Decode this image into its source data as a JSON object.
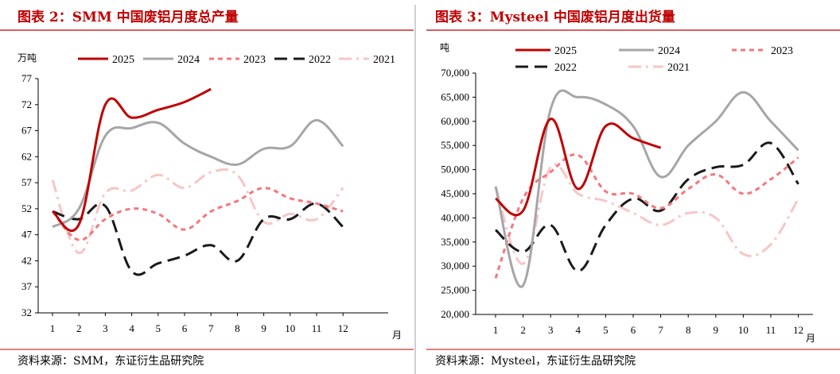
{
  "footer": {
    "left_source": "资料来源：SMM，东证衍生品研究院",
    "right_source": "资料来源：Mysteel，东证衍生品研究院"
  },
  "chart_data": [
    {
      "type": "line",
      "title": "图表 2：SMM 中国废铝月度总产量",
      "ylabel": "万吨",
      "xlabel": "月",
      "categories": [
        "1",
        "2",
        "3",
        "4",
        "5",
        "6",
        "7",
        "8",
        "9",
        "10",
        "11",
        "12"
      ],
      "ylim": [
        32,
        77
      ],
      "yticks": [
        32,
        37,
        42,
        47,
        52,
        57,
        62,
        67,
        72,
        77
      ],
      "ytick_labels": [
        "32",
        "37",
        "42",
        "47",
        "52",
        "57",
        "62",
        "67",
        "72",
        "77"
      ],
      "legend": [
        "2025",
        "2024",
        "2023",
        "2022",
        "2021"
      ],
      "series": [
        {
          "name": "2025",
          "color": "#c00000",
          "dash": "solid",
          "values": [
            51.5,
            49.0,
            72.0,
            69.5,
            71.0,
            72.5,
            75.0,
            null,
            null,
            null,
            null,
            null
          ]
        },
        {
          "name": "2024",
          "color": "#a6a6a6",
          "dash": "solid",
          "values": [
            48.5,
            52.0,
            66.0,
            67.5,
            68.5,
            64.5,
            62.0,
            60.5,
            63.5,
            64.0,
            69.0,
            64.0
          ]
        },
        {
          "name": "2023",
          "color": "#f4777d",
          "dash": "short",
          "values": [
            51.5,
            46.0,
            50.0,
            52.0,
            51.0,
            48.0,
            51.5,
            53.5,
            56.0,
            54.0,
            53.0,
            51.5
          ]
        },
        {
          "name": "2022",
          "color": "#1a1a1a",
          "dash": "long",
          "values": [
            51.5,
            50.0,
            52.5,
            40.0,
            41.5,
            43.0,
            45.0,
            42.0,
            50.0,
            50.0,
            53.0,
            48.5
          ]
        },
        {
          "name": "2021",
          "color": "#f7c6c7",
          "dash": "dashdot",
          "values": [
            57.5,
            43.5,
            55.0,
            55.5,
            58.5,
            56.0,
            59.0,
            58.5,
            49.5,
            51.0,
            50.0,
            56.0
          ]
        }
      ]
    },
    {
      "type": "line",
      "title": "图表 3：Mysteel 中国废铝月度出货量",
      "ylabel": "吨",
      "xlabel": "月",
      "categories": [
        "1",
        "2",
        "3",
        "4",
        "5",
        "6",
        "7",
        "8",
        "9",
        "10",
        "11",
        "12"
      ],
      "ylim": [
        20000,
        70000
      ],
      "yticks": [
        20000,
        25000,
        30000,
        35000,
        40000,
        45000,
        50000,
        55000,
        60000,
        65000,
        70000
      ],
      "ytick_labels": [
        "20,000",
        "25,000",
        "30,000",
        "35,000",
        "40,000",
        "45,000",
        "50,000",
        "55,000",
        "60,000",
        "65,000",
        "70,000"
      ],
      "legend": [
        "2025",
        "2024",
        "2023",
        "2022",
        "2021"
      ],
      "series": [
        {
          "name": "2025",
          "color": "#c00000",
          "dash": "solid",
          "values": [
            44000,
            41500,
            60500,
            46000,
            59000,
            56500,
            54500,
            null,
            null,
            null,
            null,
            null
          ]
        },
        {
          "name": "2024",
          "color": "#a6a6a6",
          "dash": "solid",
          "values": [
            46500,
            26000,
            62500,
            65000,
            63500,
            59000,
            48500,
            55000,
            60000,
            66000,
            60000,
            54000
          ]
        },
        {
          "name": "2023",
          "color": "#f4777d",
          "dash": "short",
          "values": [
            27500,
            44000,
            49500,
            53000,
            45500,
            45000,
            42000,
            46000,
            49000,
            45000,
            48000,
            52500
          ]
        },
        {
          "name": "2022",
          "color": "#1a1a1a",
          "dash": "long",
          "values": [
            37500,
            33000,
            38500,
            29000,
            38500,
            44000,
            41500,
            48000,
            50500,
            51000,
            55500,
            47000
          ]
        },
        {
          "name": "2021",
          "color": "#f7c6c7",
          "dash": "dashdot",
          "values": [
            46500,
            30500,
            50500,
            45000,
            43500,
            41000,
            38500,
            41000,
            40000,
            32500,
            34500,
            44000
          ]
        }
      ]
    }
  ]
}
